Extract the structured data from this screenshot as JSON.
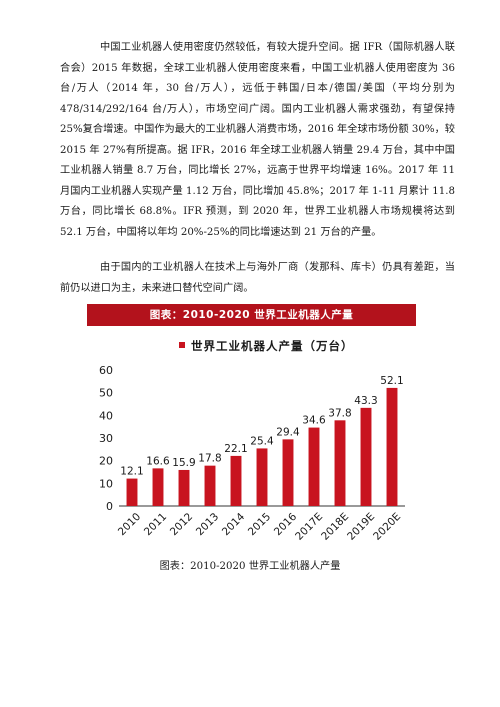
{
  "paragraph_1": "中国工业机器人使用密度仍然较低，有较大提升空间。据 IFR（国际机器人联合会）2015 年数据，全球工业机器人使用密度来看，中国工业机器人使用密度为 36 台/万人（2014 年，30 台/万人），远低于韩国/日本/德国/美国（平均分别为 478/314/292/164 台/万人），市场空间广阔。国内工业机器人需求强劲，有望保持 25%复合增速。中国作为最大的工业机器人消费市场，2016 年全球市场份额 30%，较 2015 年 27%有所提高。据 IFR，2016 年全球工业机器人销量 29.4 万台，其中中国工业机器人销量 8.7 万台，同比增长 27%，远高于世界平均增速 16%。2017 年 11 月国内工业机器人实现产量 1.12 万台，同比增加 45.8%；2017 年 1-11 月累计 11.8 万台，同比增长 68.8%。IFR 预测，到 2020 年，世界工业机器人市场规模将达到 52.1 万台，中国将以年均 20%-25%的同比增速达到 21 万台的产量。",
  "paragraph_2": "由于国内的工业机器人在技术上与海外厂商（发那科、库卡）仍具有差距，当前仍以进口为主，未来进口替代空间广阔。",
  "figure_header": "图表：2010-2020 世界工业机器人产量",
  "caption": "图表：2010-2020 世界工业机器人产量",
  "colors": {
    "bar": "#c8141f",
    "header": "#b3121c"
  },
  "chart_data": {
    "type": "bar",
    "title": "",
    "legend": [
      "世界工业机器人产量（万台）"
    ],
    "categories": [
      "2010",
      "2011",
      "2012",
      "2013",
      "2014",
      "2015",
      "2016",
      "2017E",
      "2018E",
      "2019E",
      "2020E"
    ],
    "series": [
      {
        "name": "世界工业机器人产量（万台）",
        "values": [
          12.1,
          16.6,
          15.9,
          17.8,
          22.1,
          25.4,
          29.4,
          34.6,
          37.8,
          43.3,
          52.1
        ]
      }
    ],
    "data_labels": [
      "12.1",
      "16.6",
      "15.9",
      "17.8",
      "22.1",
      "25.4",
      "29.4",
      "34.6",
      "37.8",
      "43.3",
      "52.1"
    ],
    "yticks": [
      "0",
      "10",
      "20",
      "30",
      "40",
      "50",
      "60"
    ],
    "ylim": [
      0,
      60
    ],
    "grid": false,
    "legend_position": "top"
  }
}
